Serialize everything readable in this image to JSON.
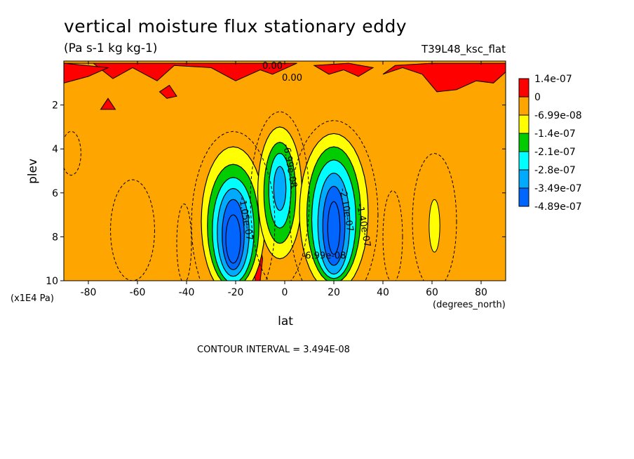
{
  "chart_data": {
    "type": "heatmap",
    "title": "vertical moisture flux stationary eddy",
    "units": "(Pa s-1 kg kg-1)",
    "experiment": "T39L48_ksc_flat",
    "xlabel": "lat",
    "xunits": "(degrees_north)",
    "ylabel": "plev",
    "yunits": "(x1E4 Pa)",
    "xlim": [
      -90,
      90
    ],
    "ylim": [
      10,
      0
    ],
    "x_ticks": [
      "-80",
      "-60",
      "-40",
      "-20",
      "0",
      "20",
      "40",
      "60",
      "80"
    ],
    "x_tick_values": [
      -80,
      -60,
      -40,
      -20,
      0,
      20,
      40,
      60,
      80
    ],
    "y_ticks": [
      "2",
      "4",
      "6",
      "8",
      "10"
    ],
    "y_tick_values": [
      2,
      4,
      6,
      8,
      10
    ],
    "contour_interval": "CONTOUR INTERVAL = 3.494E-08",
    "levels": [
      {
        "label": "1.4e-07",
        "color": "#ff0000"
      },
      {
        "label": "0",
        "color": "#ffa500"
      },
      {
        "label": "-6.99e-08",
        "color": "#ffff00"
      },
      {
        "label": "-1.4e-07",
        "color": "#00cc00"
      },
      {
        "label": "-2.1e-07",
        "color": "#00ffff"
      },
      {
        "label": "-2.8e-07",
        "color": "#00aaff"
      },
      {
        "label": "-3.49e-07",
        "color": "#0066ff"
      },
      {
        "label": "-4.89e-07",
        "color": "#0066ff"
      }
    ],
    "features": [
      {
        "name": "southern-trough",
        "lat": -22,
        "plev": 8.0,
        "min_value": -4.89e-07
      },
      {
        "name": "equatorial-trough",
        "lat": -2,
        "plev": 5.8,
        "min_value": -2.1e-07
      },
      {
        "name": "northern-trough",
        "lat": 21,
        "plev": 7.5,
        "min_value": -4.89e-07
      },
      {
        "name": "northern-midlat-trough",
        "lat": 61,
        "plev": 7.5,
        "min_value": -1.4e-07
      }
    ],
    "contour_labels": [
      "0.00",
      "0.00",
      "-6.99e-08",
      "-1.05e-07",
      "-2.10e-07",
      "-1.40e-07",
      "-6.99e-08"
    ]
  }
}
